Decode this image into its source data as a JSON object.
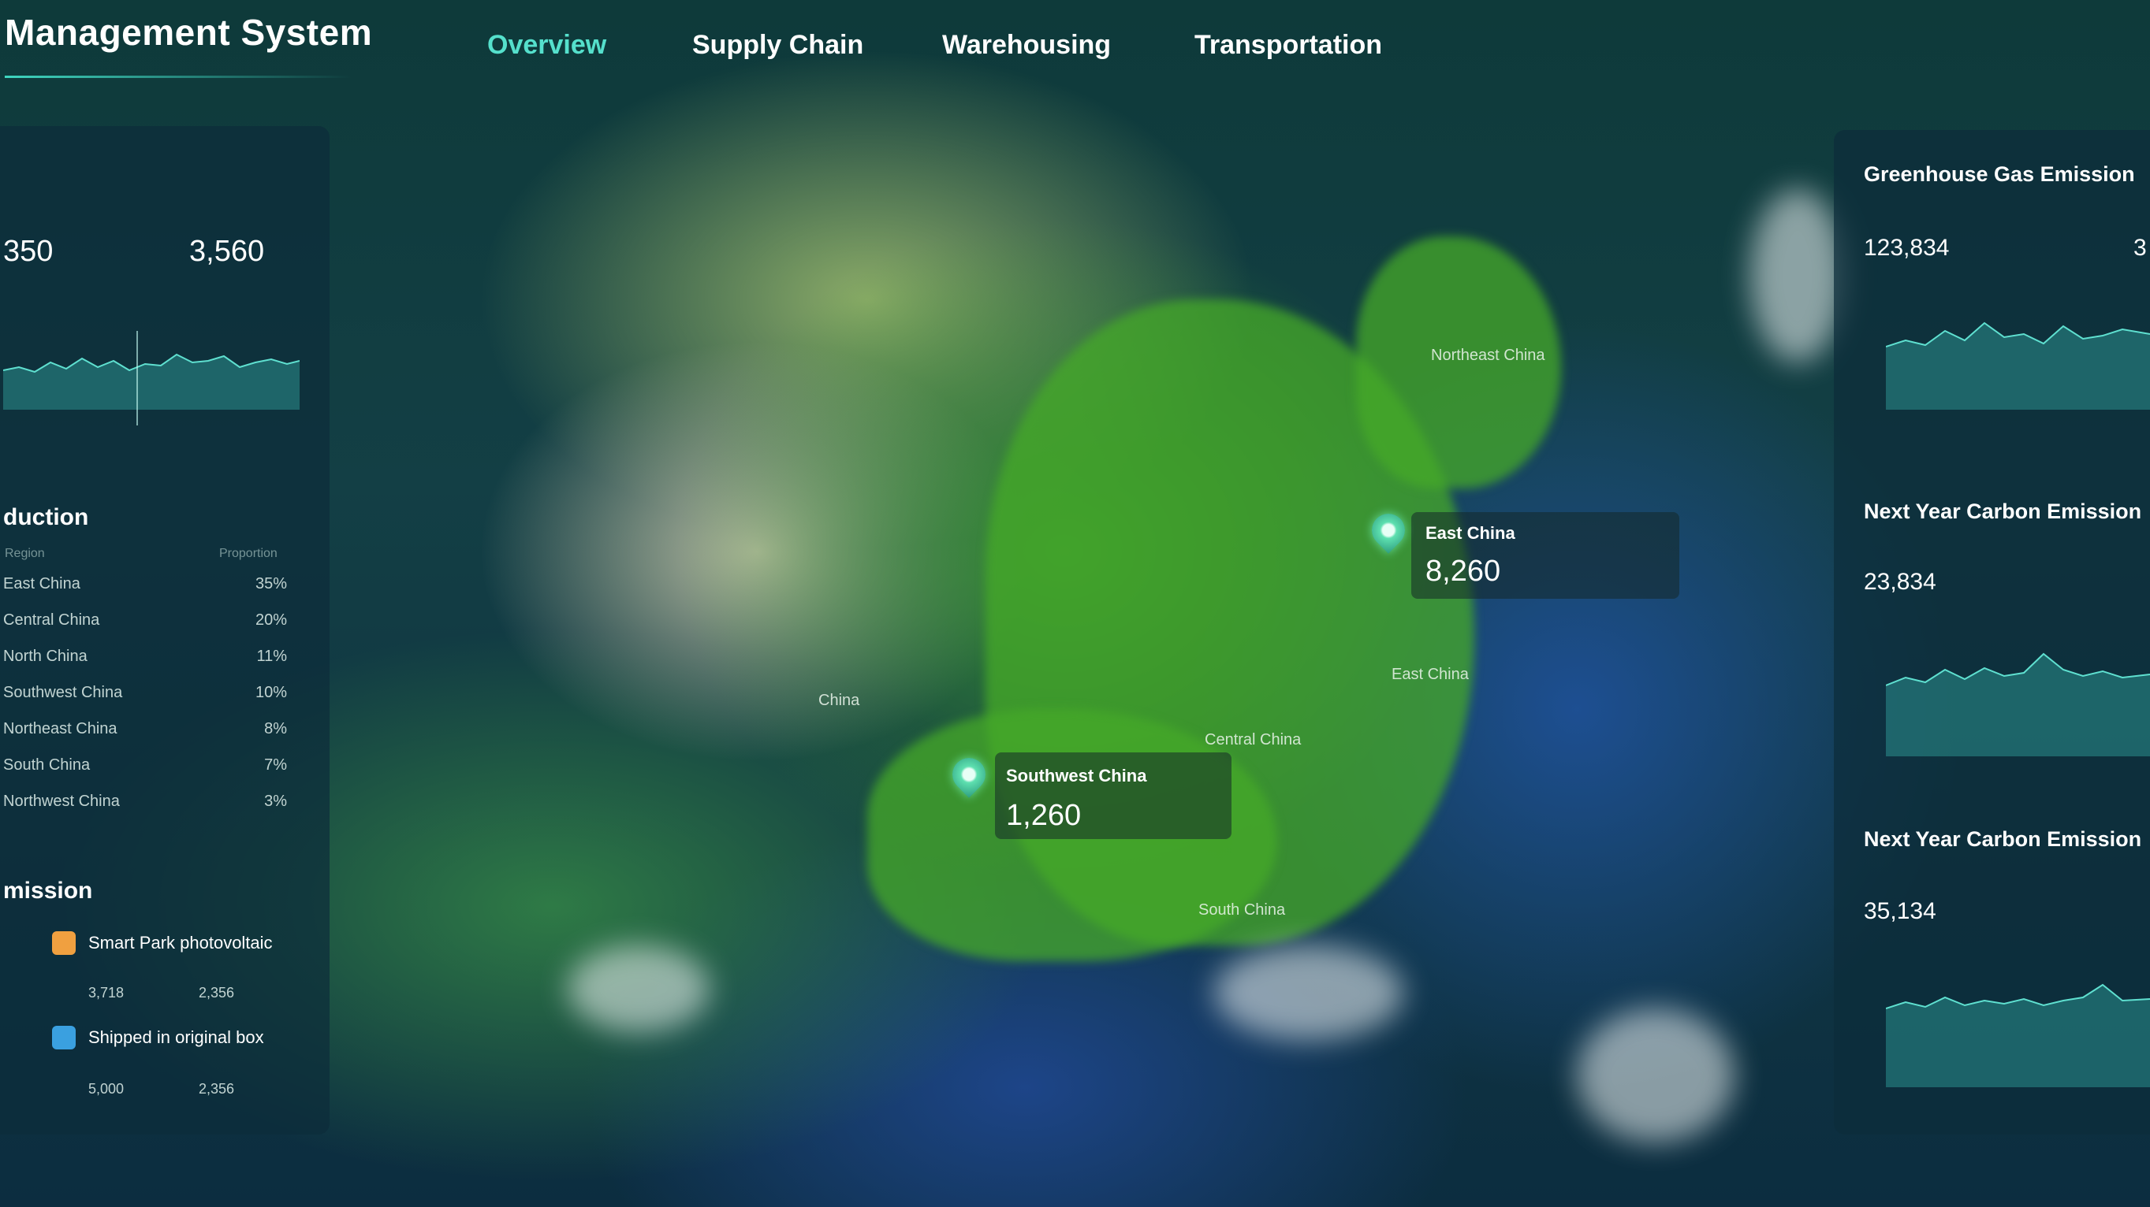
{
  "header": {
    "title": "Management System",
    "tabs": [
      {
        "label": "Overview",
        "active": true
      },
      {
        "label": "Supply Chain",
        "active": false
      },
      {
        "label": "Warehousing",
        "active": false
      },
      {
        "label": "Transportation",
        "active": false
      }
    ]
  },
  "left_panel": {
    "stats": {
      "value_a": "350",
      "value_b": "3,560"
    },
    "reduction": {
      "title": "duction",
      "col_region": "Region",
      "col_percent": "Proportion",
      "rows": [
        {
          "name": "East China",
          "value": "35%"
        },
        {
          "name": "Central China",
          "value": "20%"
        },
        {
          "name": "North China",
          "value": "11%"
        },
        {
          "name": "Southwest China",
          "value": "10%"
        },
        {
          "name": "Northeast China",
          "value": "8%"
        },
        {
          "name": "South China",
          "value": "7%"
        },
        {
          "name": "Northwest China",
          "value": "3%"
        }
      ]
    },
    "emission": {
      "title": "mission",
      "items": [
        {
          "label": "Smart Park photovoltaic",
          "v1": "3,718",
          "v2": "2,356",
          "color": "#f0a040"
        },
        {
          "label": "Shipped in original box",
          "v1": "5,000",
          "v2": "2,356",
          "color": "#3aa0e0"
        }
      ]
    }
  },
  "map": {
    "callouts": [
      {
        "name": "East China",
        "value": "8,260"
      },
      {
        "name": "Southwest China",
        "value": "1,260"
      }
    ],
    "labels": [
      "Northeast China",
      "East China",
      "Central China",
      "South China",
      "China"
    ]
  },
  "right_panel": {
    "sections": [
      {
        "title": "Greenhouse Gas Emission",
        "value": "123,834",
        "value_b": "3"
      },
      {
        "title": "Next Year Carbon Emission",
        "value": "23,834"
      },
      {
        "title": "Next Year Carbon Emission",
        "value": "35,134"
      }
    ]
  }
}
